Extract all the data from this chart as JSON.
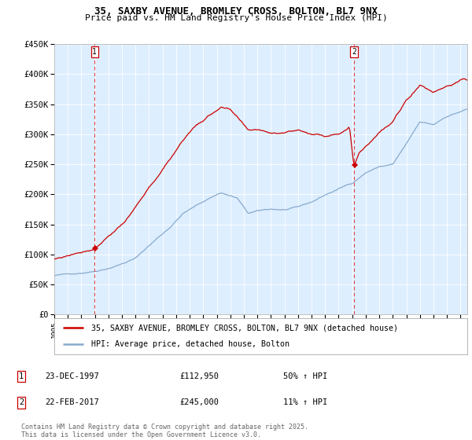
{
  "title": "35, SAXBY AVENUE, BROMLEY CROSS, BOLTON, BL7 9NX",
  "subtitle": "Price paid vs. HM Land Registry's House Price Index (HPI)",
  "ylim": [
    0,
    450000
  ],
  "yticks": [
    0,
    50000,
    100000,
    150000,
    200000,
    250000,
    300000,
    350000,
    400000,
    450000
  ],
  "ytick_labels": [
    "£0",
    "£50K",
    "£100K",
    "£150K",
    "£200K",
    "£250K",
    "£300K",
    "£350K",
    "£400K",
    "£450K"
  ],
  "sale1_date": "23-DEC-1997",
  "sale1_price": 112950,
  "sale1_label": "£112,950",
  "sale1_pct": "50% ↑ HPI",
  "sale2_date": "22-FEB-2017",
  "sale2_price": 245000,
  "sale2_label": "£245,000",
  "sale2_pct": "11% ↑ HPI",
  "legend_red": "35, SAXBY AVENUE, BROMLEY CROSS, BOLTON, BL7 9NX (detached house)",
  "legend_blue": "HPI: Average price, detached house, Bolton",
  "footer": "Contains HM Land Registry data © Crown copyright and database right 2025.\nThis data is licensed under the Open Government Licence v3.0.",
  "red_color": "#cc0000",
  "blue_color": "#88aacc",
  "bg_color": "#ddeeff",
  "grid_color": "#ffffff",
  "vline_color": "#dd4444",
  "marker_color": "#cc0000",
  "xlim_start": 1995.0,
  "xlim_end": 2025.5,
  "sale1_t": 1997.978,
  "sale2_t": 2017.128
}
